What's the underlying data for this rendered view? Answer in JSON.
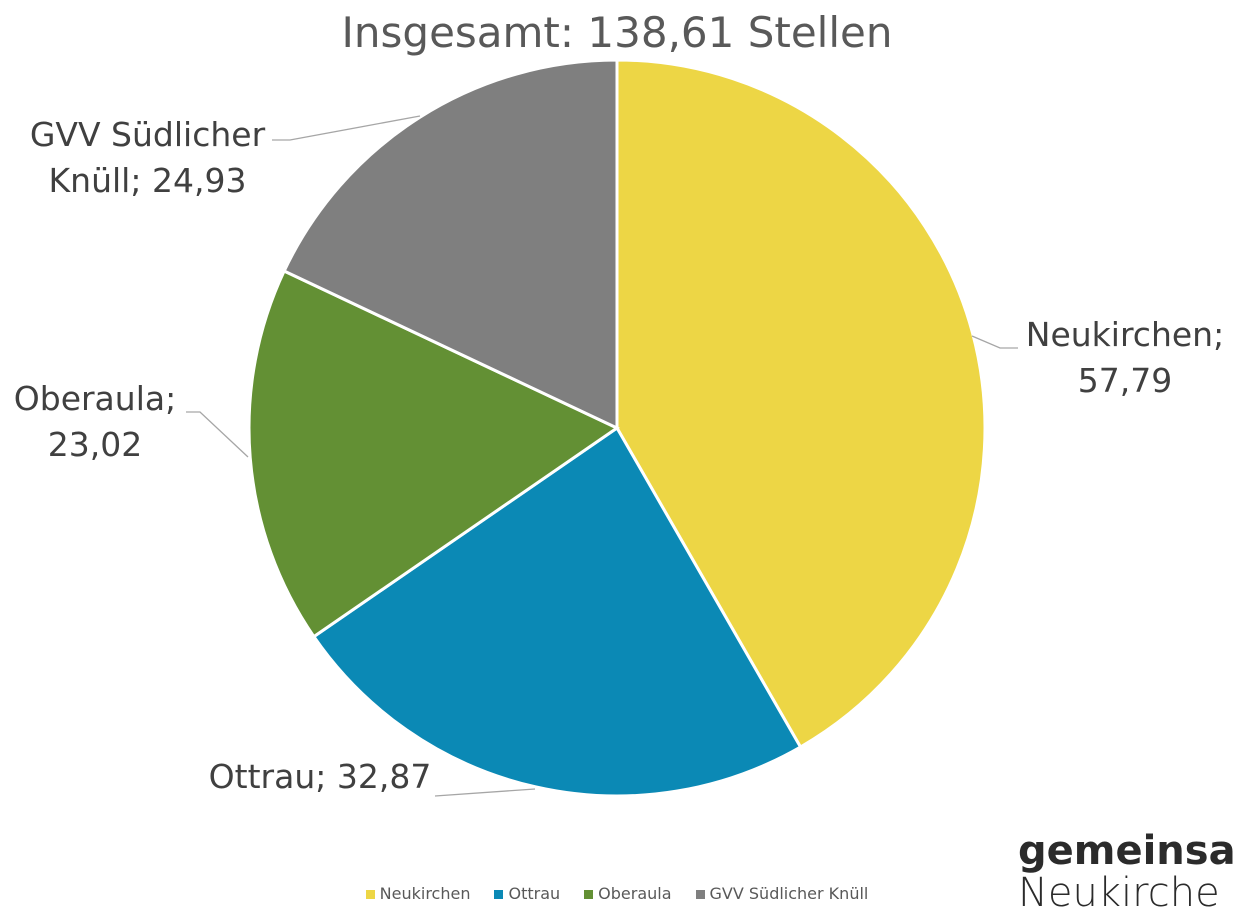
{
  "chart_data": {
    "type": "pie",
    "title": "Insgesamt: 138,61 Stellen",
    "categories": [
      "Neukirchen",
      "Ottrau",
      "Oberaula",
      "GVV Südlicher Knüll"
    ],
    "values": [
      57.79,
      32.87,
      23.02,
      24.93
    ],
    "value_labels": [
      "Neukirchen; 57,79",
      "Ottrau; 32,87",
      "Oberaula; 23,02",
      "GVV Südlicher Knüll; 24,93"
    ],
    "colors": [
      "#EDD645",
      "#0B89B5",
      "#639034",
      "#7F7F7F"
    ],
    "legend": "bottom"
  },
  "logo": {
    "line1": "gemeinsa",
    "line2": "Neukirche"
  }
}
